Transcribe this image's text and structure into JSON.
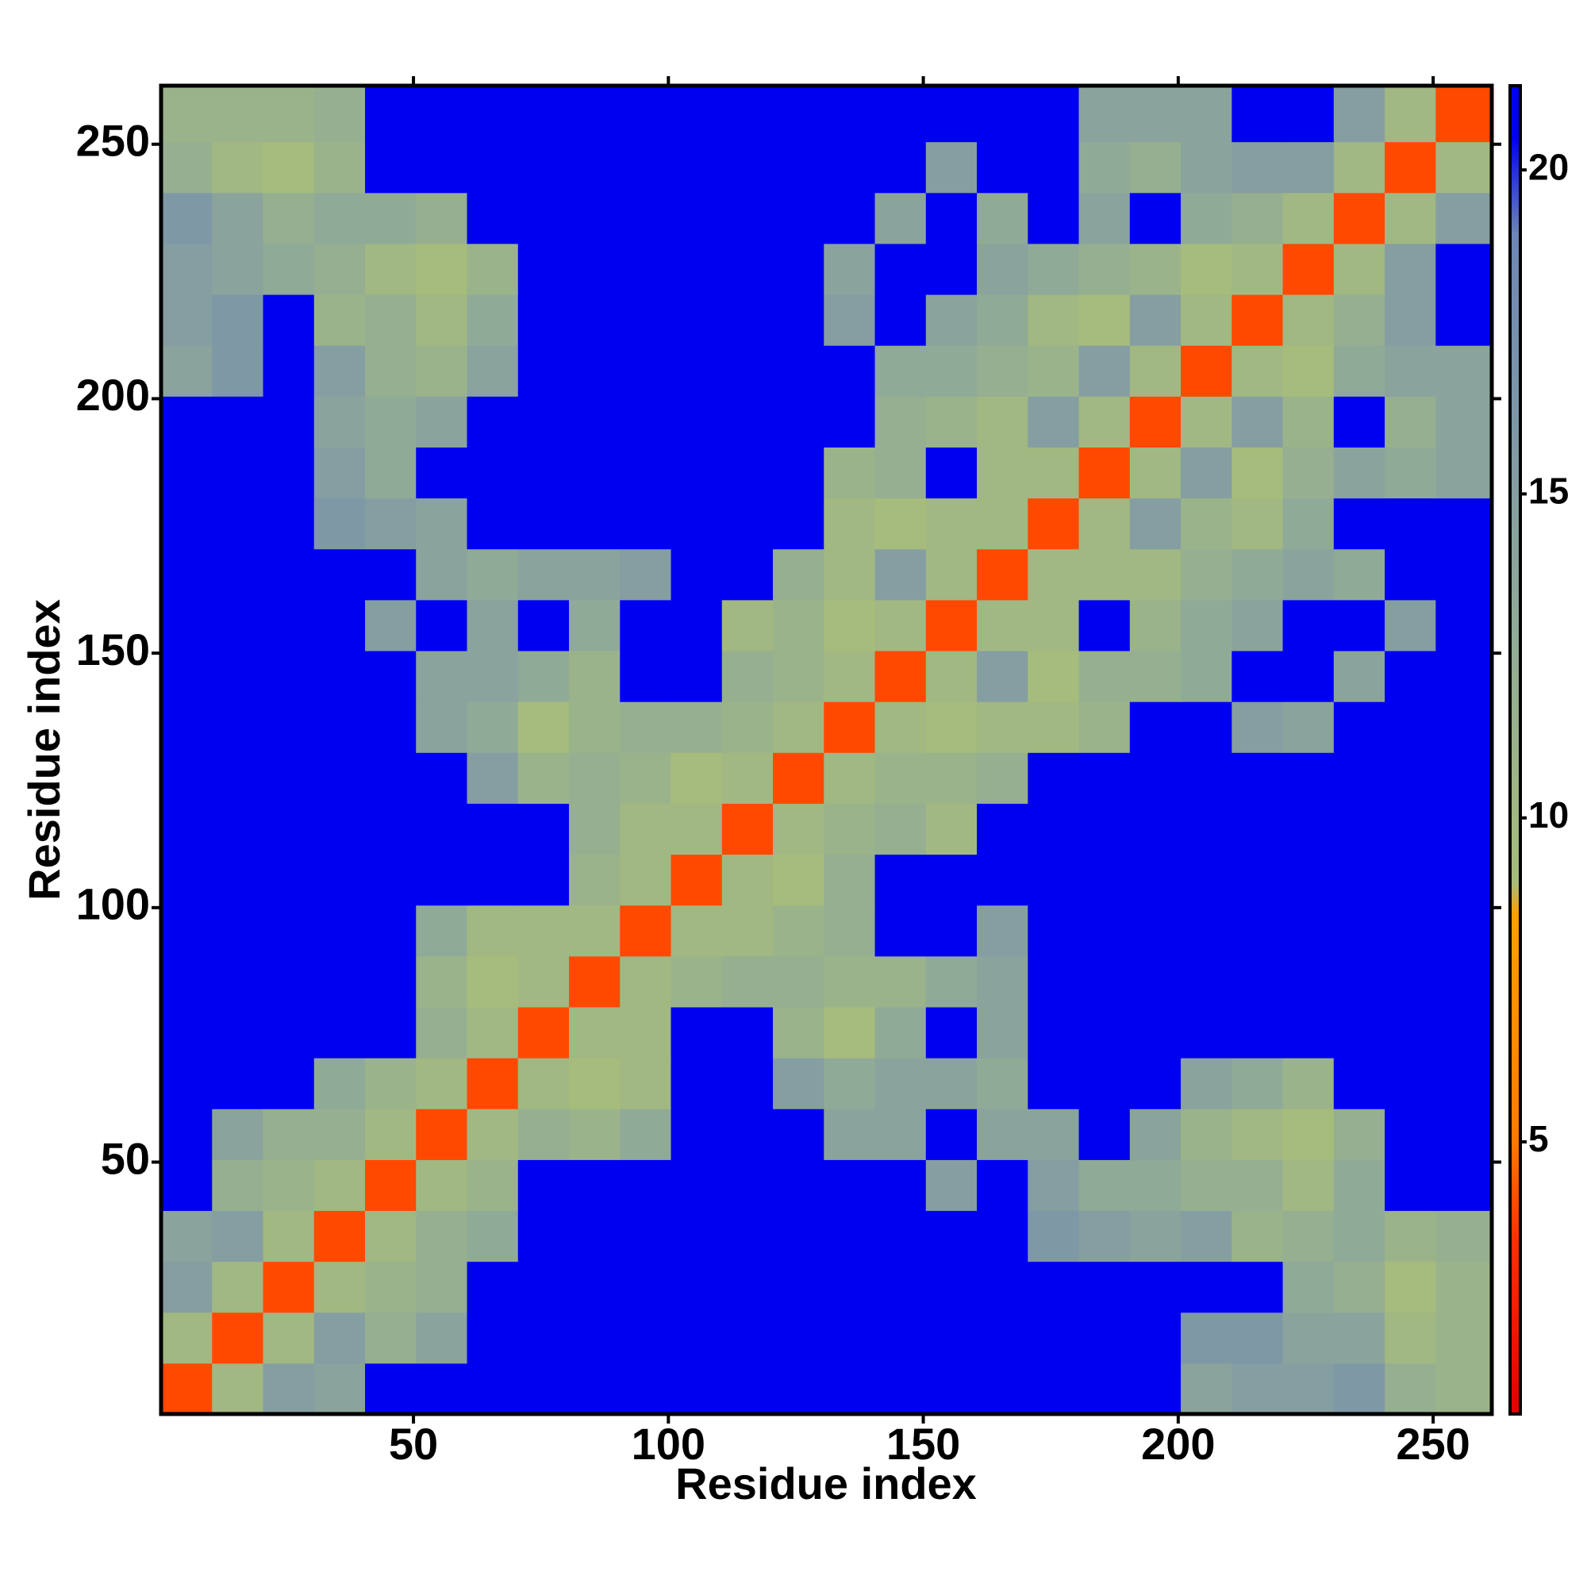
{
  "chart_data": {
    "type": "heatmap",
    "x_label": "Residue index",
    "y_label": "Residue index",
    "xlim": [
      0.5,
      261.5
    ],
    "ylim": [
      0.5,
      261.5
    ],
    "xticks": [
      50,
      100,
      150,
      200,
      250
    ],
    "yticks": [
      50,
      100,
      150,
      200,
      250
    ],
    "bins": [
      0.5,
      10.5,
      20.5,
      30.5,
      40.5,
      50.5,
      60.5,
      70.5,
      80.5,
      90.5,
      100.5,
      110.5,
      120.5,
      130.5,
      140.5,
      150.5,
      160.5,
      170.5,
      180.5,
      190.5,
      200.5,
      210.5,
      220.5,
      230.5,
      240.5,
      250.5,
      261.5
    ],
    "zlim": [
      0.8,
      21.3
    ],
    "zticks": [
      5,
      10,
      15,
      20
    ],
    "colorscale": [
      [
        0.8,
        "#e00000"
      ],
      [
        3.5,
        "#ff3000"
      ],
      [
        5,
        "#ff7a00"
      ],
      [
        8.5,
        "#ffa000"
      ],
      [
        9,
        "#a6bc7c"
      ],
      [
        13,
        "#90aa98"
      ],
      [
        19,
        "#6e86b4"
      ],
      [
        20.5,
        "#0000f0"
      ],
      [
        21.3,
        "#0000f0"
      ]
    ],
    "z": [
      [
        4,
        10,
        15,
        14,
        21,
        21,
        21,
        21,
        21,
        21,
        21,
        21,
        21,
        21,
        21,
        21,
        21,
        21,
        21,
        21,
        14,
        15,
        15,
        16,
        12,
        11
      ],
      [
        10,
        4,
        10,
        15,
        12,
        14,
        21,
        21,
        21,
        21,
        21,
        21,
        21,
        21,
        21,
        21,
        21,
        21,
        21,
        21,
        16,
        16,
        14,
        14,
        10,
        11
      ],
      [
        15,
        10,
        4,
        10,
        11,
        12,
        21,
        21,
        21,
        21,
        21,
        21,
        21,
        21,
        21,
        21,
        21,
        21,
        21,
        21,
        21,
        21,
        13,
        12,
        9,
        11
      ],
      [
        14,
        15,
        10,
        4,
        10,
        12,
        13,
        21,
        21,
        21,
        21,
        21,
        21,
        21,
        21,
        21,
        21,
        16,
        15,
        14,
        15,
        11,
        12,
        13,
        11,
        12
      ],
      [
        21,
        12,
        11,
        10,
        4,
        10,
        11,
        21,
        21,
        21,
        21,
        21,
        21,
        21,
        21,
        15,
        21,
        15,
        13,
        13,
        12,
        12,
        10,
        13,
        21,
        21
      ],
      [
        21,
        14,
        12,
        12,
        10,
        4,
        10,
        12,
        11,
        13,
        21,
        21,
        21,
        14,
        14,
        21,
        14,
        14,
        21,
        14,
        11,
        10,
        9,
        12,
        21,
        21
      ],
      [
        21,
        21,
        21,
        13,
        11,
        10,
        4,
        10,
        9,
        10,
        21,
        21,
        15,
        13,
        14,
        14,
        13,
        21,
        21,
        21,
        14,
        13,
        11,
        21,
        21,
        21
      ],
      [
        21,
        21,
        21,
        21,
        21,
        12,
        10,
        4,
        10,
        10,
        21,
        21,
        11,
        9,
        13,
        21,
        14,
        21,
        21,
        21,
        21,
        21,
        21,
        21,
        21,
        21
      ],
      [
        21,
        21,
        21,
        21,
        21,
        11,
        9,
        10,
        4,
        10,
        11,
        12,
        12,
        11,
        11,
        13,
        14,
        21,
        21,
        21,
        21,
        21,
        21,
        21,
        21,
        21
      ],
      [
        21,
        21,
        21,
        21,
        21,
        13,
        10,
        10,
        10,
        4,
        10,
        10,
        11,
        12,
        21,
        21,
        15,
        21,
        21,
        21,
        21,
        21,
        21,
        21,
        21,
        21
      ],
      [
        21,
        21,
        21,
        21,
        21,
        21,
        21,
        21,
        11,
        10,
        4,
        10,
        9,
        12,
        21,
        21,
        21,
        21,
        21,
        21,
        21,
        21,
        21,
        21,
        21,
        21
      ],
      [
        21,
        21,
        21,
        21,
        21,
        21,
        21,
        21,
        12,
        10,
        10,
        4,
        10,
        11,
        12,
        10,
        21,
        21,
        21,
        21,
        21,
        21,
        21,
        21,
        21,
        21
      ],
      [
        21,
        21,
        21,
        21,
        21,
        21,
        15,
        11,
        12,
        11,
        9,
        10,
        4,
        10,
        11,
        11,
        12,
        21,
        21,
        21,
        21,
        21,
        21,
        21,
        21,
        21
      ],
      [
        21,
        21,
        21,
        21,
        21,
        14,
        13,
        9,
        11,
        12,
        12,
        11,
        10,
        4,
        10,
        9,
        10,
        10,
        11,
        21,
        21,
        15,
        14,
        21,
        21,
        21
      ],
      [
        21,
        21,
        21,
        21,
        21,
        14,
        14,
        13,
        11,
        21,
        21,
        12,
        11,
        10,
        4,
        10,
        15,
        9,
        12,
        12,
        13,
        21,
        21,
        14,
        21,
        21
      ],
      [
        21,
        21,
        21,
        21,
        15,
        21,
        14,
        21,
        13,
        21,
        21,
        10,
        11,
        9,
        10,
        4,
        10,
        10,
        21,
        11,
        13,
        14,
        21,
        21,
        15,
        21
      ],
      [
        21,
        21,
        21,
        21,
        21,
        14,
        13,
        14,
        14,
        15,
        21,
        21,
        12,
        10,
        15,
        10,
        4,
        10,
        10,
        10,
        12,
        13,
        14,
        13,
        21,
        21
      ],
      [
        21,
        21,
        21,
        16,
        15,
        14,
        21,
        21,
        21,
        21,
        21,
        21,
        21,
        10,
        9,
        10,
        10,
        4,
        10,
        15,
        11,
        10,
        13,
        21,
        21,
        21
      ],
      [
        21,
        21,
        21,
        15,
        13,
        21,
        21,
        21,
        21,
        21,
        21,
        21,
        21,
        11,
        12,
        21,
        10,
        10,
        4,
        10,
        15,
        9,
        12,
        14,
        13,
        14
      ],
      [
        21,
        21,
        21,
        14,
        13,
        14,
        21,
        21,
        21,
        21,
        21,
        21,
        21,
        21,
        12,
        11,
        10,
        15,
        10,
        4,
        10,
        15,
        11,
        21,
        12,
        14
      ],
      [
        14,
        16,
        21,
        15,
        12,
        11,
        14,
        21,
        21,
        21,
        21,
        21,
        21,
        21,
        13,
        13,
        12,
        11,
        15,
        10,
        4,
        10,
        9,
        13,
        14,
        14
      ],
      [
        15,
        16,
        21,
        11,
        12,
        10,
        13,
        21,
        21,
        21,
        21,
        21,
        21,
        15,
        21,
        14,
        13,
        10,
        9,
        15,
        10,
        4,
        10,
        12,
        15,
        21
      ],
      [
        15,
        14,
        13,
        12,
        10,
        9,
        11,
        21,
        21,
        21,
        21,
        21,
        21,
        14,
        21,
        21,
        14,
        13,
        12,
        11,
        9,
        10,
        4,
        10,
        15,
        21
      ],
      [
        16,
        14,
        12,
        13,
        13,
        12,
        21,
        21,
        21,
        21,
        21,
        21,
        21,
        21,
        14,
        21,
        13,
        21,
        14,
        21,
        13,
        12,
        10,
        4,
        10,
        15
      ],
      [
        12,
        10,
        9,
        11,
        21,
        21,
        21,
        21,
        21,
        21,
        21,
        21,
        21,
        21,
        21,
        15,
        21,
        21,
        13,
        12,
        14,
        15,
        15,
        10,
        4,
        10
      ],
      [
        11,
        11,
        11,
        12,
        21,
        21,
        21,
        21,
        21,
        21,
        21,
        21,
        21,
        21,
        21,
        21,
        21,
        21,
        14,
        14,
        14,
        21,
        21,
        15,
        10,
        4
      ]
    ]
  }
}
